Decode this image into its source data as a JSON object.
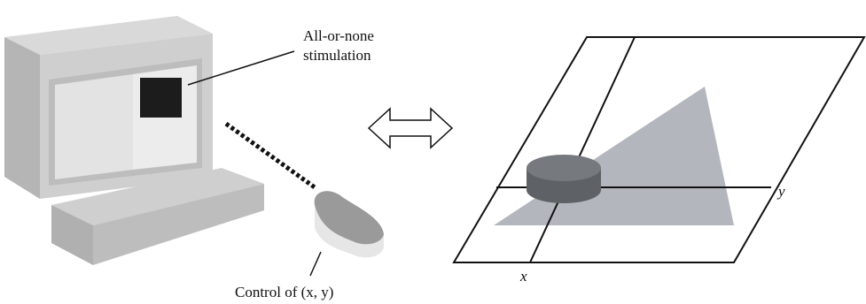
{
  "labels": {
    "stimulation": [
      "All-or-none",
      "stimulation"
    ],
    "control": "Control of (x, y)",
    "axis_x": "x",
    "axis_y": "y"
  }
}
